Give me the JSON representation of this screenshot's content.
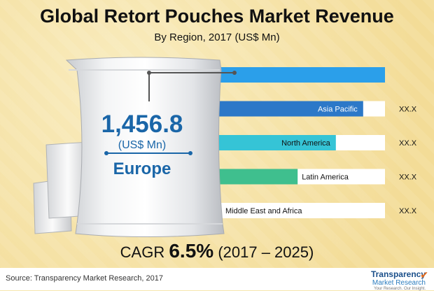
{
  "chart_data": {
    "type": "bar",
    "orientation": "horizontal",
    "title": "Global Retort Pouches Market Revenue",
    "subtitle": "By Region, 2017 (US$ Mn)",
    "categories": [
      "Europe",
      "Asia Pacific",
      "North America",
      "Latin America",
      "Middle East and Africa"
    ],
    "values_text": [
      "",
      "XX.X",
      "XX.X",
      "XX.X",
      "XX.X"
    ],
    "relative_bar_length": [
      1.0,
      0.88,
      0.73,
      0.52,
      0.1
    ],
    "bar_colors": [
      "#2b9fea",
      "#2c78c8",
      "#35c4d6",
      "#3fbf8e",
      "#2f8f4a"
    ],
    "grid": false,
    "legend": "none"
  },
  "highlight": {
    "value": "1,456.8",
    "unit": "(US$ Mn)",
    "region": "Europe"
  },
  "cagr": {
    "label": "CAGR",
    "value": "6.5%",
    "period": "(2017 – 2025)"
  },
  "footer": {
    "source": "Source: Transparency Market Research, 2017",
    "logo_line1": "Transparency",
    "logo_line2": "Market Research",
    "logo_tag": "Your Research. Our Insight."
  },
  "colors": {
    "background": "#f7e6ad",
    "accent": "#1a66a8"
  }
}
